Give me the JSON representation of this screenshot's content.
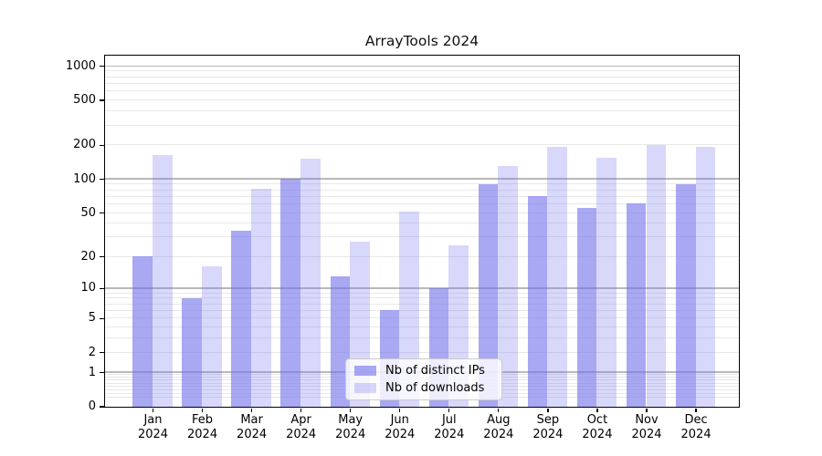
{
  "title": "ArrayTools 2024",
  "chart_data": {
    "type": "bar",
    "title": "ArrayTools 2024",
    "categories": [
      "Jan 2024",
      "Feb 2024",
      "Mar 2024",
      "Apr 2024",
      "May 2024",
      "Jun 2024",
      "Jul 2024",
      "Aug 2024",
      "Sep 2024",
      "Oct 2024",
      "Nov 2024",
      "Dec 2024"
    ],
    "x_tick_months": [
      "Jan",
      "Feb",
      "Mar",
      "Apr",
      "May",
      "Jun",
      "Jul",
      "Aug",
      "Sep",
      "Oct",
      "Nov",
      "Dec"
    ],
    "x_tick_year": "2024",
    "series": [
      {
        "name": "Nb of distinct IPs",
        "color": "rgba(110,110,235,0.60)",
        "values": [
          20,
          8,
          34,
          100,
          13,
          6,
          10,
          90,
          70,
          55,
          61,
          90
        ]
      },
      {
        "name": "Nb of downloads",
        "color": "rgba(110,110,235,0.27)",
        "values": [
          162,
          16,
          81,
          150,
          27,
          51,
          25,
          131,
          193,
          155,
          200,
          193
        ]
      }
    ],
    "y_scale": "log1p",
    "y_ticks": [
      0,
      1,
      2,
      5,
      10,
      20,
      50,
      100,
      200,
      500,
      1000
    ],
    "ylim": [
      0,
      1240
    ],
    "grid": true,
    "legend_position": "lower center",
    "colors": {
      "bar_base": "#6e6eeb",
      "grid_major": "#b9b9b9",
      "grid_minor": "#e8e8e8",
      "spine": "#000000",
      "text": "#000000",
      "legend_bg": "#ffffff",
      "legend_border": "#cccccc"
    }
  }
}
